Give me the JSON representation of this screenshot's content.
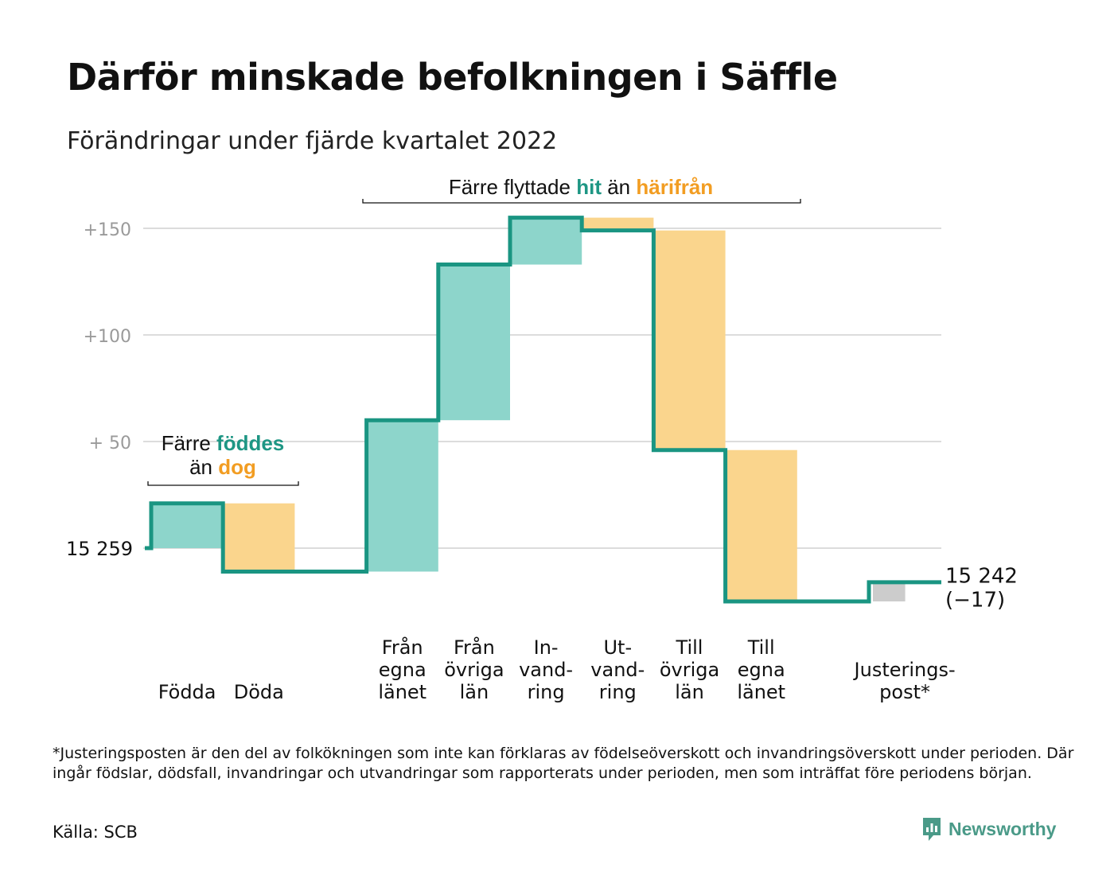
{
  "title": "Därför minskade befolkningen i Säffle",
  "subtitle": "Förändringar under fjärde kvartalet 2022",
  "chart_data": {
    "type": "waterfall",
    "start": {
      "label": "15 259",
      "value": 0
    },
    "end": {
      "label": "15 242",
      "change_label": "(−17)",
      "value": -17
    },
    "y_ticks": [
      {
        "value": 150,
        "label": "+150"
      },
      {
        "value": 100,
        "label": "+100"
      },
      {
        "value": 50,
        "label": "+ 50"
      },
      {
        "value": 0,
        "label": "15 259"
      }
    ],
    "ylim": [
      -30,
      160
    ],
    "grid": true,
    "categories": [
      {
        "slot": 0,
        "label": [
          "Födda"
        ],
        "value": 21,
        "kind": "in"
      },
      {
        "slot": 1,
        "label": [
          "Döda"
        ],
        "value": -32,
        "kind": "out"
      },
      {
        "slot": 3,
        "label": [
          "Från",
          "egna",
          "länet"
        ],
        "value": 71,
        "kind": "in"
      },
      {
        "slot": 4,
        "label": [
          "Från",
          "övriga",
          "län"
        ],
        "value": 73,
        "kind": "in"
      },
      {
        "slot": 5,
        "label": [
          "In-",
          "vand-",
          "ring"
        ],
        "value": 22,
        "kind": "in"
      },
      {
        "slot": 6,
        "label": [
          "Ut-",
          "vand-",
          "ring"
        ],
        "value": -6,
        "kind": "out"
      },
      {
        "slot": 7,
        "label": [
          "Till",
          "övriga",
          "län"
        ],
        "value": -103,
        "kind": "out"
      },
      {
        "slot": 8,
        "label": [
          "Till",
          "egna",
          "länet"
        ],
        "value": -71,
        "kind": "out"
      },
      {
        "slot": 10,
        "label": [
          "Justerings-",
          "post*"
        ],
        "value": 9,
        "kind": "adjust"
      }
    ],
    "annotations": {
      "births": {
        "line1": [
          {
            "text": "Färre ",
            "color": "#111111",
            "bold": false
          },
          {
            "text": "föddes",
            "color": "#1e9684",
            "bold": true
          }
        ],
        "line2": [
          {
            "text": "än ",
            "color": "#111111",
            "bold": false
          },
          {
            "text": "dog",
            "color": "#f29d22",
            "bold": true
          }
        ]
      },
      "moves": {
        "line1": [
          {
            "text": "Färre flyttade ",
            "color": "#111111",
            "bold": false
          },
          {
            "text": "hit",
            "color": "#1e9684",
            "bold": true
          },
          {
            "text": " än ",
            "color": "#111111",
            "bold": false
          },
          {
            "text": "härifrån",
            "color": "#f29d22",
            "bold": true
          }
        ]
      }
    },
    "colors": {
      "in": "#8dd5cb",
      "out": "#fad58d",
      "adjust": "#cccccc",
      "line": "#1a9582",
      "grid": "#dcdcdc",
      "tick": "#9a9a9a"
    }
  },
  "footnote": "*Justeringsposten är den del av folkökningen som inte kan förklaras av födelseöverskott och invandringsöverskott under perioden. Där ingår födslar, dödsfall, invandringar och utvandringar som rapporterats under perioden, men som inträffat före periodens början.",
  "source": "Källa: SCB",
  "brand": {
    "name": "Newsworthy",
    "icon": "bar-chart-speech-icon",
    "color": "#4a9a88"
  }
}
